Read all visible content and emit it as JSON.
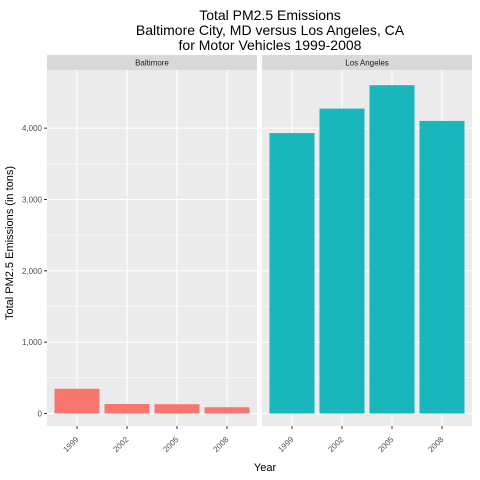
{
  "chart_data": {
    "type": "bar",
    "title_lines": [
      "Total PM2.5 Emissions",
      "Baltimore City, MD versus Los Angeles, CA",
      "for Motor Vehicles 1999-2008"
    ],
    "xlabel": "Year",
    "ylabel": "Total PM2.5 Emissions (in tons)",
    "categories": [
      "1999",
      "2002",
      "2005",
      "2008"
    ],
    "ylim": [
      -175,
      4815
    ],
    "yticks": [
      0,
      1000,
      2000,
      3000,
      4000
    ],
    "ytick_labels": [
      "0",
      "1,000",
      "2,000",
      "3,000",
      "4,000"
    ],
    "grid": true,
    "legend": "none",
    "facets": [
      {
        "name": "Baltimore",
        "color": "#F8766D",
        "values": [
          347,
          134,
          130,
          88
        ]
      },
      {
        "name": "Los Angeles",
        "color": "#19B6BB",
        "values": [
          3931,
          4274,
          4602,
          4101
        ]
      }
    ]
  }
}
